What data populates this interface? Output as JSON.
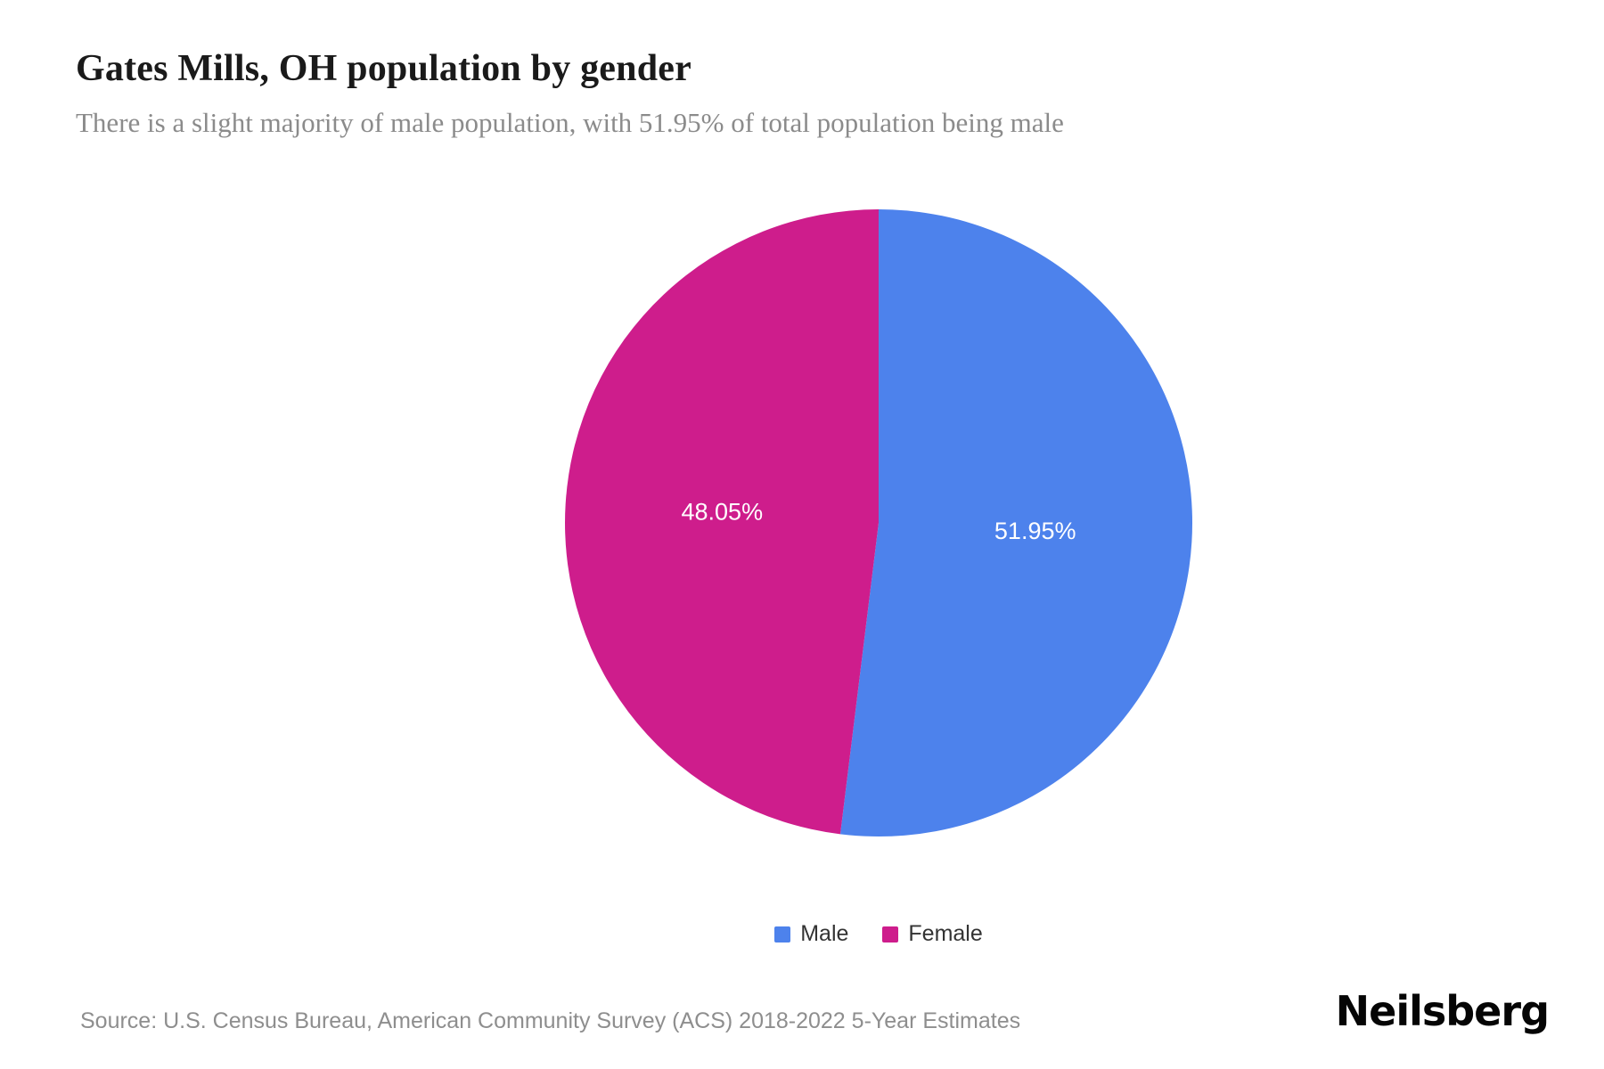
{
  "header": {
    "title": "Gates Mills, OH population by gender",
    "subtitle": "There is a slight majority of male population, with 51.95% of total population being male"
  },
  "chart_data": {
    "type": "pie",
    "title": "Gates Mills, OH population by gender",
    "start_angle_deg": -90,
    "direction": "clockwise",
    "legend_position": "bottom",
    "label_color": "#ffffff",
    "slices": [
      {
        "label": "Male",
        "value": 51.95,
        "display": "51.95%",
        "color": "#4d82ec"
      },
      {
        "label": "Female",
        "value": 48.05,
        "display": "48.05%",
        "color": "#ce1d8c"
      }
    ]
  },
  "footer": {
    "source": "Source: U.S. Census Bureau, American Community Survey (ACS) 2018-2022 5-Year Estimates",
    "logo": "Neilsberg"
  }
}
